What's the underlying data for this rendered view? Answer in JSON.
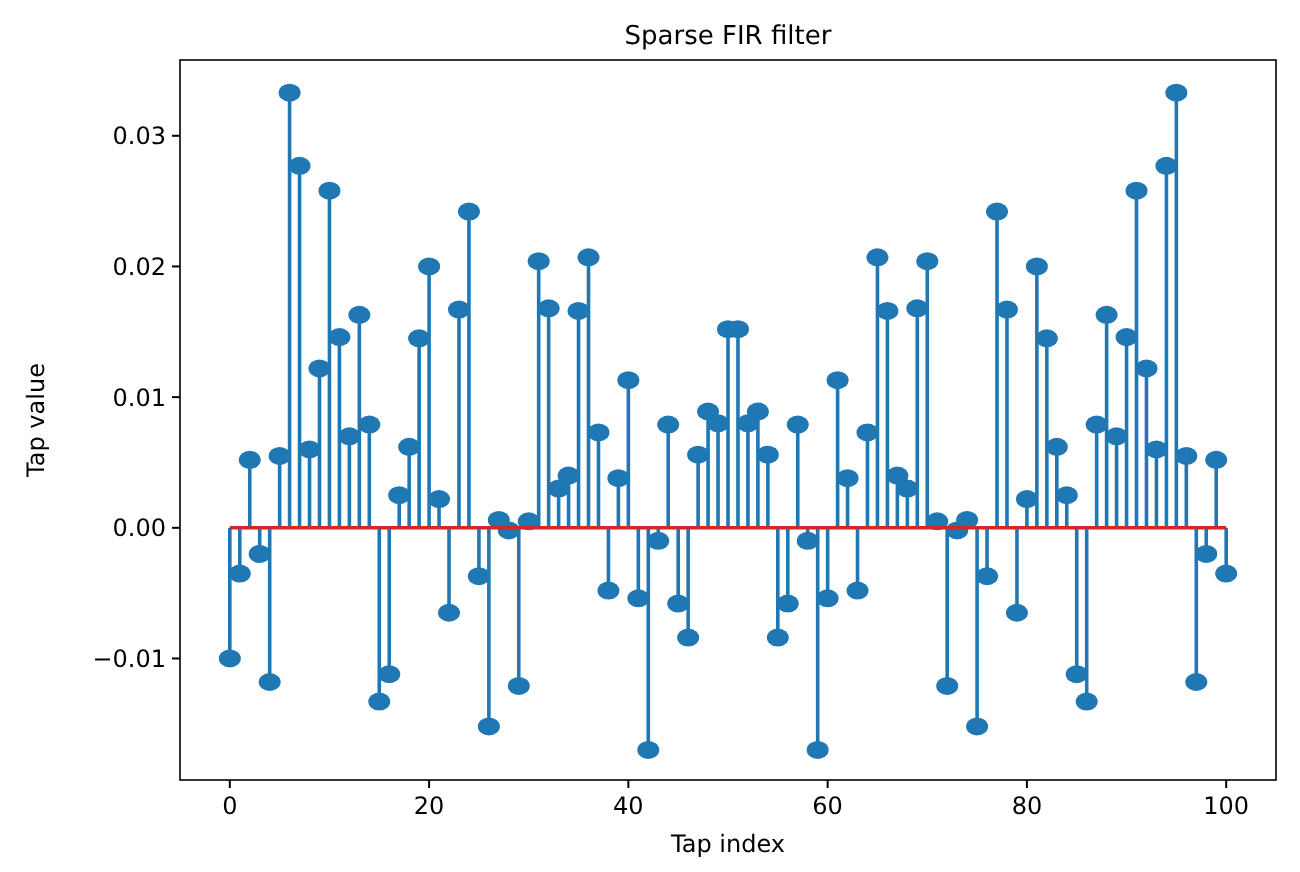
{
  "chart_data": {
    "type": "lollipop",
    "title": "Sparse FIR filter",
    "xlabel": "Tap index",
    "ylabel": "Tap value",
    "x": [
      0,
      1,
      2,
      3,
      4,
      5,
      6,
      7,
      8,
      9,
      10,
      11,
      12,
      13,
      14,
      15,
      16,
      17,
      18,
      19,
      20,
      21,
      22,
      23,
      24,
      25,
      26,
      27,
      28,
      29,
      30,
      31,
      32,
      33,
      34,
      35,
      36,
      37,
      38,
      39,
      40,
      41,
      42,
      43,
      44,
      45,
      46,
      47,
      48,
      49,
      50,
      51,
      52,
      53,
      54,
      55,
      56,
      57,
      58,
      59,
      60,
      61,
      62,
      63,
      64,
      65,
      66,
      67,
      68,
      69,
      70,
      71,
      72,
      73,
      74,
      75,
      76,
      77,
      78,
      79,
      80,
      81,
      82,
      83,
      84,
      85,
      86,
      87,
      88,
      89,
      90,
      91,
      92,
      93,
      94,
      95,
      96,
      97,
      98,
      99,
      100
    ],
    "series": [
      {
        "color": "#1f77b4",
        "values": [
          -0.01,
          -0.0035,
          0.0052,
          -0.002,
          -0.0118,
          0.0055,
          0.0333,
          0.0277,
          0.006,
          0.0122,
          0.0258,
          0.0146,
          0.007,
          0.0163,
          0.0079,
          -0.0133,
          -0.0112,
          0.0025,
          0.0062,
          0.0145,
          0.02,
          0.0022,
          -0.0065,
          0.0167,
          0.0242,
          -0.0037,
          -0.0152,
          0.0006,
          -0.0002,
          -0.0121,
          0.0005,
          0.0204,
          0.0168,
          0.003,
          0.004,
          0.0166,
          0.0207,
          0.0073,
          -0.0048,
          0.0038,
          0.0113,
          -0.0054,
          -0.017,
          -0.001,
          0.0079,
          -0.0058,
          -0.0084,
          0.0056,
          0.0089,
          0.008,
          0.0152,
          0.0152,
          0.008,
          0.0089,
          0.0056,
          -0.0084,
          -0.0058,
          0.0079,
          -0.001,
          -0.017,
          -0.0054,
          0.0113,
          0.0038,
          -0.0048,
          0.0073,
          0.0207,
          0.0166,
          0.004,
          0.003,
          0.0168,
          0.0204,
          0.0005,
          -0.0121,
          -0.0002,
          0.0006,
          -0.0152,
          -0.0037,
          0.0242,
          0.0167,
          -0.0065,
          0.0022,
          0.02,
          0.0145,
          0.0062,
          0.0025,
          -0.0112,
          -0.0133,
          0.0079,
          0.0163,
          0.007,
          0.0146,
          0.0258,
          0.0122,
          0.006,
          0.0277,
          0.0333,
          0.0055,
          -0.0118,
          -0.002,
          0.0052,
          -0.0035
        ]
      }
    ],
    "marker": "circle",
    "xlim": [
      -5,
      105
    ],
    "xticks": [
      0,
      20,
      40,
      60,
      80,
      100
    ],
    "ylim": [
      -0.0193,
      0.0358
    ],
    "yticks": [
      {
        "value": -0.01,
        "label": "−0.01"
      },
      {
        "value": 0,
        "label": "0.00"
      },
      {
        "value": 0.01,
        "label": "0.01"
      },
      {
        "value": 0.02,
        "label": "0.02"
      },
      {
        "value": 0.03,
        "label": "0.03"
      }
    ],
    "ref_lines": [
      {
        "axis": "y",
        "value": 0,
        "color": "#d62728"
      }
    ]
  }
}
